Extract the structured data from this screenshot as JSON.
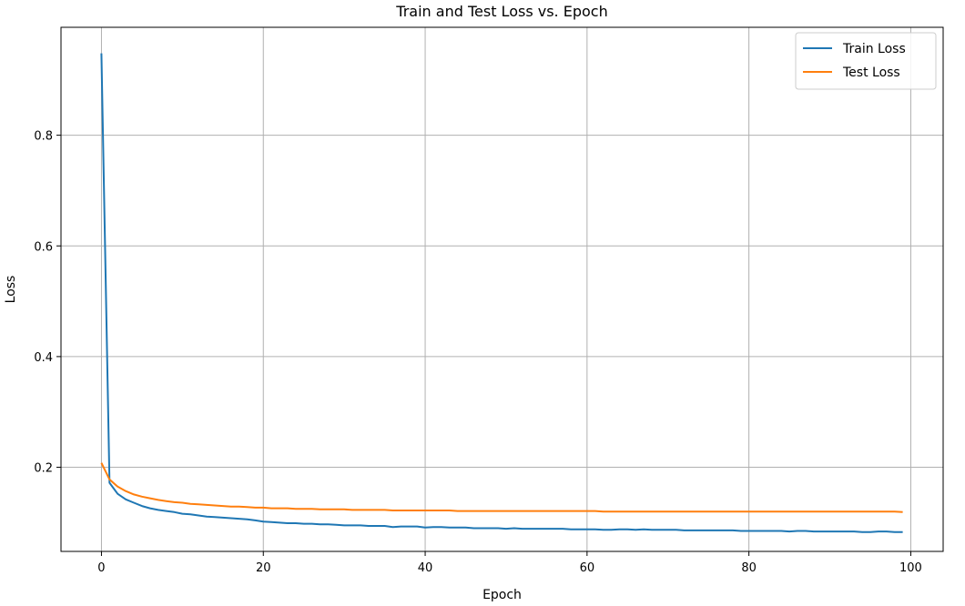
{
  "chart_data": {
    "type": "line",
    "title": "Train and Test Loss vs. Epoch",
    "xlabel": "Epoch",
    "ylabel": "Loss",
    "xlim": [
      -5,
      104
    ],
    "ylim": [
      0.048,
      0.995
    ],
    "xticks": [
      0,
      20,
      40,
      60,
      80,
      100
    ],
    "yticks": [
      0.2,
      0.4,
      0.6,
      0.8
    ],
    "xtick_labels": [
      "0",
      "20",
      "40",
      "60",
      "80",
      "100"
    ],
    "ytick_labels": [
      "0.2",
      "0.4",
      "0.6",
      "0.8"
    ],
    "grid": true,
    "legend_position": "top-right",
    "x": [
      0,
      1,
      2,
      3,
      4,
      5,
      6,
      7,
      8,
      9,
      10,
      11,
      12,
      13,
      14,
      15,
      16,
      17,
      18,
      19,
      20,
      21,
      22,
      23,
      24,
      25,
      26,
      27,
      28,
      29,
      30,
      31,
      32,
      33,
      34,
      35,
      36,
      37,
      38,
      39,
      40,
      41,
      42,
      43,
      44,
      45,
      46,
      47,
      48,
      49,
      50,
      51,
      52,
      53,
      54,
      55,
      56,
      57,
      58,
      59,
      60,
      61,
      62,
      63,
      64,
      65,
      66,
      67,
      68,
      69,
      70,
      71,
      72,
      73,
      74,
      75,
      76,
      77,
      78,
      79,
      80,
      81,
      82,
      83,
      84,
      85,
      86,
      87,
      88,
      89,
      90,
      91,
      92,
      93,
      94,
      95,
      96,
      97,
      98,
      99
    ],
    "series": [
      {
        "name": "Train Loss",
        "color": "#1f77b4",
        "values": [
          0.948,
          0.172,
          0.152,
          0.142,
          0.136,
          0.13,
          0.126,
          0.123,
          0.121,
          0.119,
          0.116,
          0.115,
          0.113,
          0.111,
          0.11,
          0.109,
          0.108,
          0.107,
          0.106,
          0.104,
          0.102,
          0.101,
          0.1,
          0.099,
          0.099,
          0.098,
          0.098,
          0.097,
          0.097,
          0.096,
          0.095,
          0.095,
          0.095,
          0.094,
          0.094,
          0.094,
          0.092,
          0.093,
          0.093,
          0.093,
          0.091,
          0.092,
          0.092,
          0.091,
          0.091,
          0.091,
          0.09,
          0.09,
          0.09,
          0.09,
          0.089,
          0.09,
          0.089,
          0.089,
          0.089,
          0.089,
          0.089,
          0.089,
          0.088,
          0.088,
          0.088,
          0.088,
          0.087,
          0.087,
          0.088,
          0.088,
          0.087,
          0.088,
          0.087,
          0.087,
          0.087,
          0.087,
          0.086,
          0.086,
          0.086,
          0.086,
          0.086,
          0.086,
          0.086,
          0.085,
          0.085,
          0.085,
          0.085,
          0.085,
          0.085,
          0.084,
          0.085,
          0.085,
          0.084,
          0.084,
          0.084,
          0.084,
          0.084,
          0.084,
          0.083,
          0.083,
          0.084,
          0.084,
          0.083,
          0.083
        ]
      },
      {
        "name": "Test Loss",
        "color": "#ff7f0e",
        "values": [
          0.208,
          0.178,
          0.165,
          0.157,
          0.151,
          0.147,
          0.144,
          0.141,
          0.139,
          0.137,
          0.136,
          0.134,
          0.133,
          0.132,
          0.131,
          0.13,
          0.129,
          0.129,
          0.128,
          0.127,
          0.127,
          0.126,
          0.126,
          0.126,
          0.125,
          0.125,
          0.125,
          0.124,
          0.124,
          0.124,
          0.124,
          0.123,
          0.123,
          0.123,
          0.123,
          0.123,
          0.122,
          0.122,
          0.122,
          0.122,
          0.122,
          0.122,
          0.122,
          0.122,
          0.121,
          0.121,
          0.121,
          0.121,
          0.121,
          0.121,
          0.121,
          0.121,
          0.121,
          0.121,
          0.121,
          0.121,
          0.121,
          0.121,
          0.121,
          0.121,
          0.121,
          0.121,
          0.12,
          0.12,
          0.12,
          0.12,
          0.12,
          0.12,
          0.12,
          0.12,
          0.12,
          0.12,
          0.12,
          0.12,
          0.12,
          0.12,
          0.12,
          0.12,
          0.12,
          0.12,
          0.12,
          0.12,
          0.12,
          0.12,
          0.12,
          0.12,
          0.12,
          0.12,
          0.12,
          0.12,
          0.12,
          0.12,
          0.12,
          0.12,
          0.12,
          0.12,
          0.12,
          0.12,
          0.12,
          0.119
        ]
      }
    ]
  }
}
